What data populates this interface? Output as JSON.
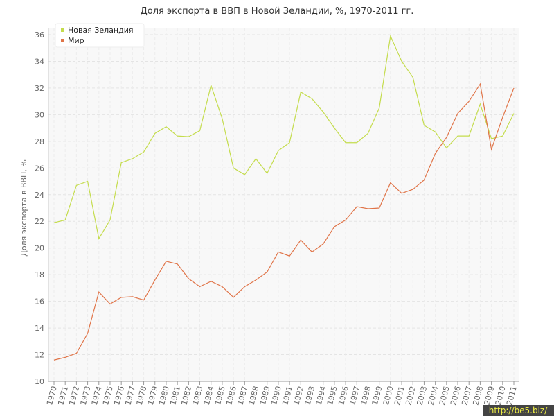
{
  "chart_data": {
    "type": "line",
    "title": "Доля экспорта в ВВП в Новой Зеландии, %, 1970-2011 гг.",
    "y_label": "Доля экспорта в ВВП, %",
    "watermark": "http://be5.biz/",
    "categories": [
      "1970",
      "1971",
      "1972",
      "1973",
      "1974",
      "1975",
      "1976",
      "1977",
      "1978",
      "1979",
      "1980",
      "1981",
      "1982",
      "1983",
      "1984",
      "1985",
      "1986",
      "1987",
      "1988",
      "1989",
      "1990",
      "1991",
      "1992",
      "1993",
      "1994",
      "1995",
      "1996",
      "1997",
      "1998",
      "1999",
      "2000",
      "2001",
      "2002",
      "2003",
      "2004",
      "2005",
      "2006",
      "2007",
      "2008",
      "2009",
      "2010",
      "2011"
    ],
    "series": [
      {
        "name": "Новая Зеландия",
        "color": "#c4dc4c",
        "values": [
          21.9,
          22.1,
          24.7,
          25.0,
          20.7,
          22.1,
          26.4,
          26.7,
          27.2,
          28.6,
          29.1,
          28.4,
          28.35,
          28.8,
          32.2,
          29.7,
          26.0,
          25.5,
          26.7,
          25.6,
          27.3,
          27.9,
          31.7,
          31.2,
          30.2,
          29.0,
          27.9,
          27.9,
          28.6,
          30.5,
          35.9,
          34.0,
          32.8,
          29.2,
          28.7,
          27.5,
          28.4,
          28.4,
          30.8,
          28.2,
          28.4,
          30.1
        ]
      },
      {
        "name": "Мир",
        "color": "#e07448",
        "values": [
          11.6,
          11.8,
          12.1,
          13.6,
          16.7,
          15.8,
          16.3,
          16.35,
          16.1,
          17.6,
          19.0,
          18.8,
          17.7,
          17.1,
          17.5,
          17.1,
          16.3,
          17.1,
          17.6,
          18.2,
          19.7,
          19.4,
          20.6,
          19.7,
          20.3,
          21.6,
          22.1,
          23.1,
          22.95,
          23.0,
          24.9,
          24.1,
          24.4,
          25.1,
          27.1,
          28.3,
          30.1,
          31.0,
          32.3,
          27.4,
          29.8,
          32.0
        ]
      }
    ],
    "ylim": [
      10,
      36
    ],
    "yticks": [
      10,
      12,
      14,
      16,
      18,
      20,
      22,
      24,
      26,
      28,
      30,
      32,
      34,
      36
    ],
    "grid": true,
    "legend": "top-left"
  }
}
